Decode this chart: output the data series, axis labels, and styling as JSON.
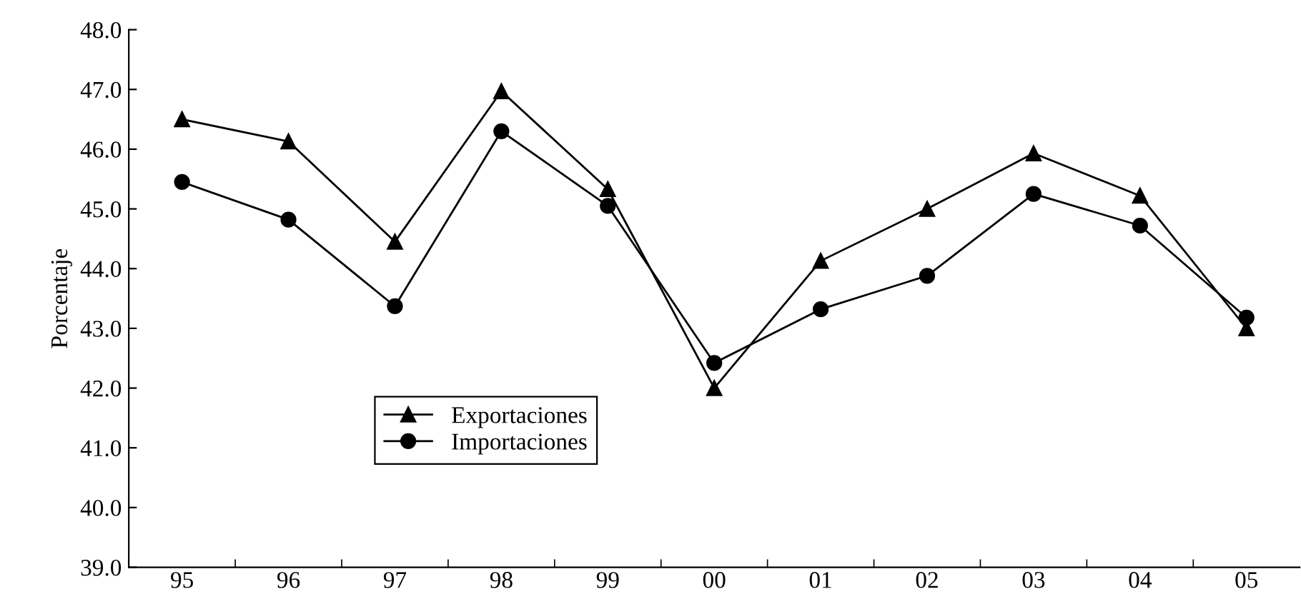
{
  "chart_data": {
    "type": "line",
    "ylabel": "Porcentaje",
    "categories": [
      "95",
      "96",
      "97",
      "98",
      "99",
      "00",
      "01",
      "02",
      "03",
      "04",
      "05"
    ],
    "series": [
      {
        "name": "Exportaciones",
        "color": "#000000",
        "marker": "triangle",
        "values": [
          46.5,
          46.13,
          44.45,
          46.97,
          45.33,
          42.0,
          44.13,
          45.0,
          45.93,
          45.22,
          43.0
        ]
      },
      {
        "name": "Importaciones",
        "color": "#000000",
        "marker": "circle",
        "values": [
          45.45,
          44.82,
          43.37,
          46.3,
          45.05,
          42.42,
          43.32,
          43.88,
          45.25,
          44.72,
          43.18
        ]
      }
    ],
    "ylim": [
      39.0,
      48.0
    ],
    "yticks": [
      {
        "value": 39,
        "label": "39.0"
      },
      {
        "value": 40,
        "label": "40.0"
      },
      {
        "value": 41,
        "label": "41.0"
      },
      {
        "value": 42,
        "label": "42.0"
      },
      {
        "value": 43,
        "label": "43.0"
      },
      {
        "value": 44,
        "label": "44.0"
      },
      {
        "value": 45,
        "label": "45.0"
      },
      {
        "value": 46,
        "label": "46.0"
      },
      {
        "value": 47,
        "label": "47.0"
      },
      {
        "value": 48,
        "label": "48.0"
      }
    ],
    "grid": false,
    "legend": "bottom left",
    "line_style": "solid"
  }
}
